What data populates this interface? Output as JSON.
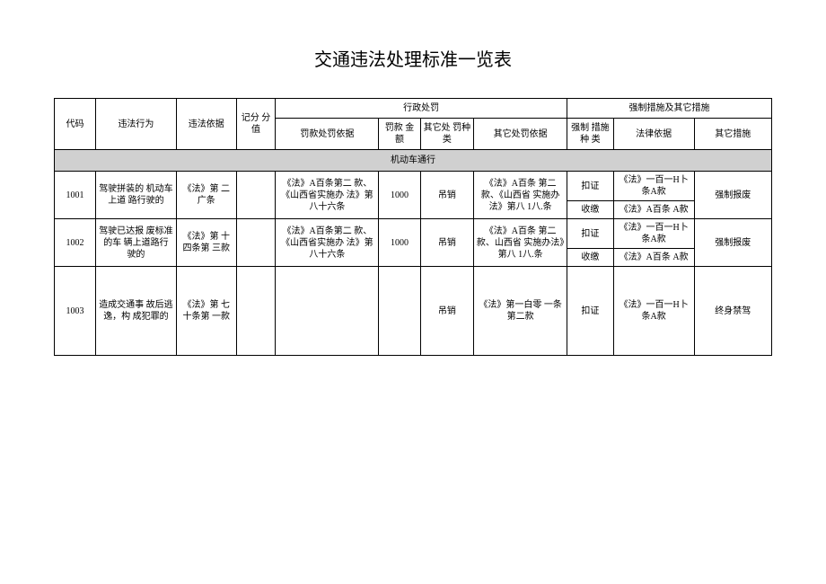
{
  "title": "交通违法处理标准一览表",
  "headers": {
    "code": "代码",
    "act": "违法行为",
    "basis": "违法依据",
    "score": "记分 分值",
    "admin_penalty_group": "行政处罚",
    "penalty_basis": "罚款处罚依据",
    "penalty_amount": "罚款 金额",
    "other_penalty_type": "其它处 罚种类",
    "other_penalty_basis": "其它处罚依据",
    "compulsory_group": "强制措施及其它措施",
    "compulsory_type": "强制 措施种 类",
    "legal_basis": "法律依据",
    "other_measure": "其它措施"
  },
  "section": "机动车通行",
  "rows": [
    {
      "code": "1001",
      "act": "驾驶拼装的 机动车上道 路行驶的",
      "basis": "《法》第 二广条",
      "score": "",
      "penalty_basis": "《法》A百条第二 款、《山西省实施办 法》第八十六条",
      "amount": "1000",
      "other_type": "吊销",
      "other_basis": "《法》A百条 第二款、《山西省 实施办法》第八\n1八.条",
      "m1_type": "扣证",
      "m1_basis": "《法》一百一H卜条A款",
      "m2_type": "收缴",
      "m2_basis": "《法》A百条 A款",
      "measure": "强制报废"
    },
    {
      "code": "1002",
      "act": "驾驶已达报 废标准的车 辆上道路行 驶的",
      "basis": "《法》第 十四条第 三款",
      "score": "",
      "penalty_basis": "《法》A百条第二 款、《山西省实施办 法》第八十六条",
      "amount": "1000",
      "other_type": "吊销",
      "other_basis": "《法》A百条 第二款、山西省 实施办法》第八\n1八.条",
      "m1_type": "扣证",
      "m1_basis": "《法》一百一H卜条A款",
      "m2_type": "收缴",
      "m2_basis": "《法》A百条 A款",
      "measure": "强制报废"
    },
    {
      "code": "1003",
      "act": "造成交通事 故后逃逸，构 成犯罪的",
      "basis": "《法》第 七十条第 一款",
      "score": "",
      "penalty_basis": "",
      "amount": "",
      "other_type": "吊销",
      "other_basis": "《法》第一白零 一条第二款",
      "m_type": "扣证",
      "m_basis": "《法》一百一H卜条A款",
      "measure": "终身禁驾"
    }
  ]
}
